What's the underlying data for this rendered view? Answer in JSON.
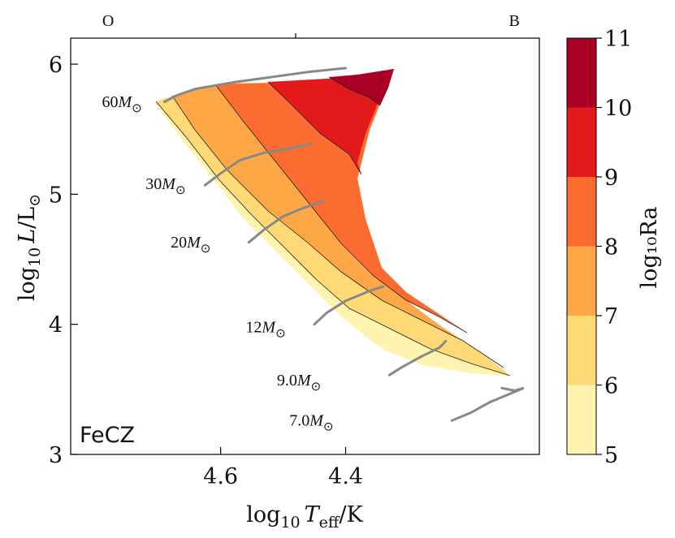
{
  "chart_data": {
    "type": "filled-contour-hrd",
    "panel_label": "FeCZ",
    "xlabel": {
      "base": "log",
      "sub": "10",
      "var": "T",
      "var_sub": "eff",
      "unit": "/K"
    },
    "ylabel": {
      "base": "log",
      "sub": "10",
      "var": "L",
      "unit": "/L",
      "unit_sub": "⊙"
    },
    "x_range": [
      4.84,
      4.09
    ],
    "y_range": [
      3.0,
      6.2
    ],
    "x_ticks": [
      {
        "v": 4.6,
        "label": "4.6"
      },
      {
        "v": 4.4,
        "label": "4.4"
      }
    ],
    "y_ticks": [
      {
        "v": 3,
        "label": "3"
      },
      {
        "v": 4,
        "label": "4"
      },
      {
        "v": 5,
        "label": "5"
      },
      {
        "v": 6,
        "label": "6"
      }
    ],
    "top_axis": [
      {
        "label": "O",
        "v": 4.78
      },
      {
        "label": "B",
        "v": 4.13
      }
    ],
    "top_tick_v": 4.48,
    "colorbar": {
      "label": "log₁₀Ra",
      "levels": [
        5,
        6,
        7,
        8,
        9,
        10,
        11
      ],
      "colors": [
        "#fff3b0",
        "#fed976",
        "#fea747",
        "#fc6c30",
        "#e31a1c",
        "#aa0026"
      ]
    },
    "tracks": [
      {
        "label": "60M",
        "sym": "⊙",
        "pts": [
          [
            4.69,
            5.71
          ],
          [
            4.67,
            5.76
          ],
          [
            4.64,
            5.81
          ],
          [
            4.58,
            5.86
          ],
          [
            4.52,
            5.9
          ],
          [
            4.46,
            5.94
          ],
          [
            4.4,
            5.97
          ]
        ]
      },
      {
        "label": "30M",
        "sym": "⊙",
        "pts": [
          [
            4.625,
            5.07
          ],
          [
            4.6,
            5.16
          ],
          [
            4.57,
            5.26
          ],
          [
            4.53,
            5.32
          ],
          [
            4.49,
            5.35
          ],
          [
            4.455,
            5.39
          ]
        ]
      },
      {
        "label": "20M",
        "sym": "⊙",
        "pts": [
          [
            4.555,
            4.63
          ],
          [
            4.53,
            4.73
          ],
          [
            4.5,
            4.83
          ],
          [
            4.47,
            4.89
          ],
          [
            4.435,
            4.95
          ]
        ]
      },
      {
        "label": "12M",
        "sym": "⊙",
        "pts": [
          [
            4.45,
            4.0
          ],
          [
            4.43,
            4.09
          ],
          [
            4.4,
            4.18
          ],
          [
            4.36,
            4.26
          ],
          [
            4.34,
            4.29
          ]
        ]
      },
      {
        "label": "9.0M",
        "sym": "⊙",
        "pts": [
          [
            4.33,
            3.61
          ],
          [
            4.31,
            3.67
          ],
          [
            4.28,
            3.75
          ],
          [
            4.25,
            3.82
          ],
          [
            4.24,
            3.87
          ]
        ]
      },
      {
        "label": "7.0M",
        "sym": "⊙",
        "pts": [
          [
            4.23,
            3.26
          ],
          [
            4.2,
            3.32
          ],
          [
            4.17,
            3.4
          ],
          [
            4.14,
            3.46
          ],
          [
            4.115,
            3.51
          ],
          [
            4.13,
            3.49
          ],
          [
            4.15,
            3.51
          ]
        ]
      }
    ],
    "label_positions_data": [
      {
        "x": 4.79,
        "y": 5.67
      },
      {
        "x": 4.72,
        "y": 5.04
      },
      {
        "x": 4.68,
        "y": 4.59
      },
      {
        "x": 4.56,
        "y": 3.94
      },
      {
        "x": 4.51,
        "y": 3.53
      },
      {
        "x": 4.49,
        "y": 3.22
      }
    ]
  }
}
